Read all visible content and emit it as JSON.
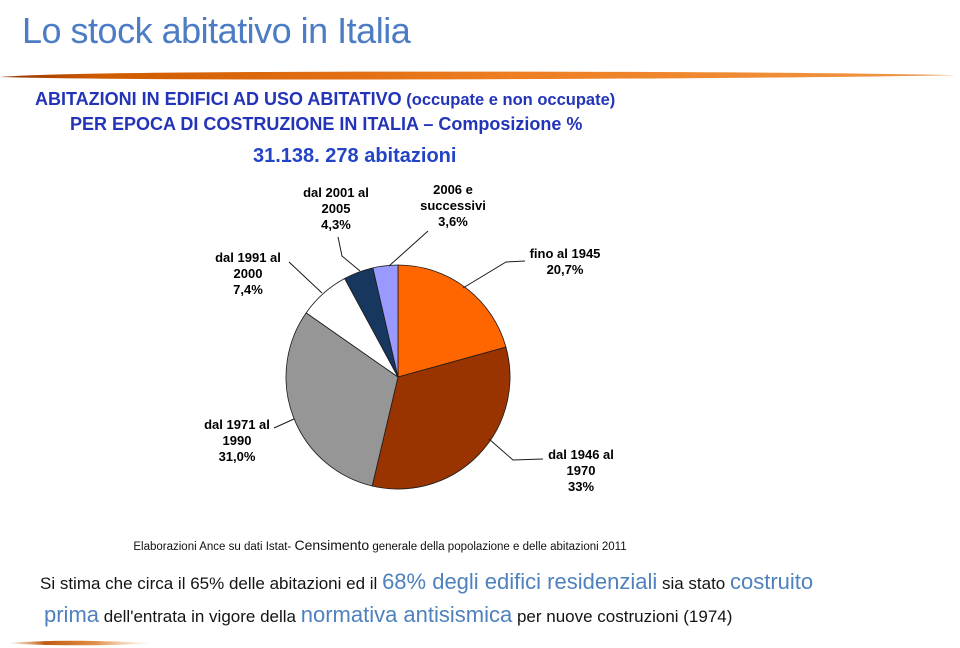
{
  "slide": {
    "title": "Lo stock abitativo in Italia",
    "header": {
      "line1_main": "ABITAZIONI IN EDIFICI AD USO ABITATIVO",
      "line1_paren": " (occupate e non occupate)",
      "line2": "PER EPOCA DI COSTRUZIONE IN ITALIA – Composizione %"
    },
    "total_label": "31.138. 278 abitazioni",
    "source": {
      "prefix": "Elaborazioni Ance su dati Istat- ",
      "emphasis": "Censimento",
      "suffix": " generale della popolazione e delle abitazioni 2011"
    },
    "footer": {
      "line1": [
        {
          "text": "Si stima che circa il 65% delle abitazioni ed il "
        },
        {
          "text": "68% degli edifici residenziali"
        },
        {
          "text": " sia stato "
        },
        {
          "text": "costruito"
        }
      ],
      "line2": [
        {
          "text": "prima"
        },
        {
          "text": " dell'entrata in vigore della "
        },
        {
          "text": "normativa antisismica"
        },
        {
          "text": " per nuove costruzioni (1974)"
        }
      ]
    }
  },
  "colors": {
    "title_blue": "#4b7cc4",
    "header_blue": "#2334b8",
    "footer_blue": "#4e81bd",
    "accent_orange": "#ee7f22",
    "accent_orange_dark": "#b04400"
  },
  "chart_data": {
    "type": "pie",
    "title": "ABITAZIONI IN EDIFICI AD USO ABITATIVO (occupate e non occupate) PER EPOCA DI COSTRUZIONE IN ITALIA – Composizione %",
    "total_annotation": "31.138. 278 abitazioni",
    "start_from": "top",
    "direction": "clockwise",
    "legend_position": "callout-labels",
    "slices": [
      {
        "label": "fino al 1945",
        "label_lines": [
          "fino al 1945"
        ],
        "value": 20.7,
        "display": "20,7%",
        "color": "#ff6600"
      },
      {
        "label": "dal 1946 al 1970",
        "label_lines": [
          "dal 1946 al",
          "1970"
        ],
        "value": 33.0,
        "display": "33%",
        "color": "#993300"
      },
      {
        "label": "dal 1971 al 1990",
        "label_lines": [
          "dal 1971 al",
          "1990"
        ],
        "value": 31.0,
        "display": "31,0%",
        "color": "#969696"
      },
      {
        "label": "dal 1991 al 2000",
        "label_lines": [
          "dal 1991 al",
          "2000"
        ],
        "value": 7.4,
        "display": "7,4%",
        "color": "#ffffff"
      },
      {
        "label": "dal 2001 al 2005",
        "label_lines": [
          "dal 2001 al",
          "2005"
        ],
        "value": 4.3,
        "display": "4,3%",
        "color": "#17375e"
      },
      {
        "label": "2006 e successivi",
        "label_lines": [
          "2006 e",
          "successivi"
        ],
        "value": 3.6,
        "display": "3,6%",
        "color": "#9999ff"
      }
    ],
    "source": "Elaborazioni Ance su dati Istat- Censimento generale della popolazione e delle abitazioni 2011"
  }
}
